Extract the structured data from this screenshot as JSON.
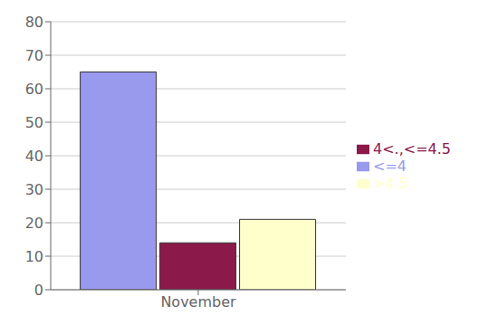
{
  "chart_data": {
    "type": "bar",
    "categories": [
      "November"
    ],
    "series": [
      {
        "name": "<=4",
        "color": "#9999ee",
        "values": [
          65
        ]
      },
      {
        "name": "4<.,<=4.5",
        "color": "#8b1a4a",
        "values": [
          14
        ]
      },
      {
        "name": ">4.5",
        "color": "#ffffcc",
        "values": [
          21
        ]
      }
    ],
    "ylim": [
      0,
      80
    ],
    "yticks": [
      0,
      10,
      20,
      30,
      40,
      50,
      60,
      70,
      80
    ],
    "grid": true,
    "legend": "right"
  }
}
